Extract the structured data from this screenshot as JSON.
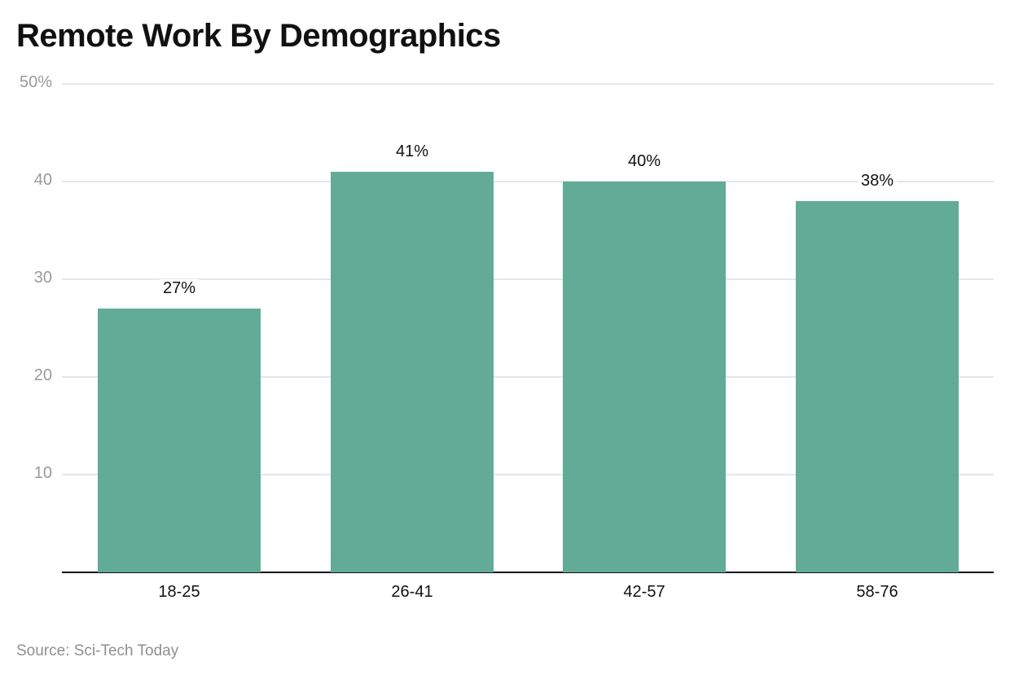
{
  "chart_data": {
    "type": "bar",
    "title": "Remote Work By Demographics",
    "categories": [
      "18-25",
      "26-41",
      "42-57",
      "58-76"
    ],
    "values": [
      27,
      41,
      40,
      38
    ],
    "value_labels": [
      "27%",
      "41%",
      "40%",
      "38%"
    ],
    "xlabel": "",
    "ylabel": "",
    "ylim": [
      0,
      50
    ],
    "yticks": [
      10,
      20,
      30,
      40,
      50
    ],
    "ytick_labels": [
      "10",
      "20",
      "30",
      "40",
      "50%"
    ],
    "grid": true,
    "legend": null,
    "bar_color": "#62ac97",
    "source": "Source: Sci-Tech Today"
  }
}
